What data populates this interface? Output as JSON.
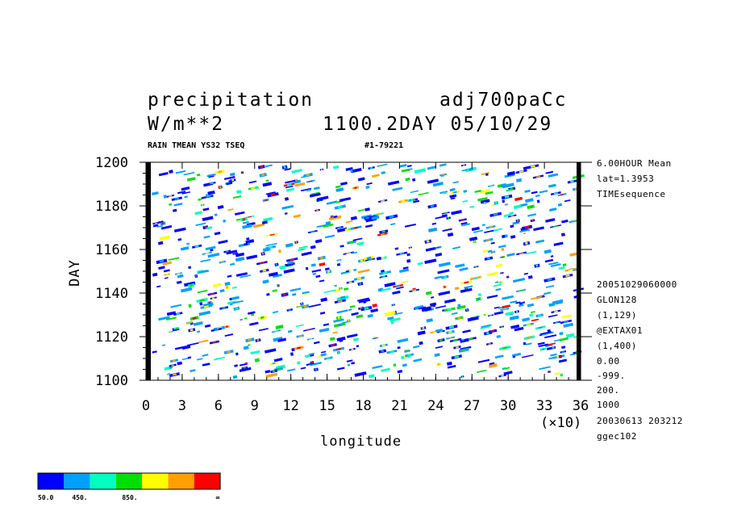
{
  "header": {
    "title_left": "precipitation",
    "title_right": "adj700paCc",
    "units": "W/m**2",
    "time_label": "1100.2DAY 05/10/29",
    "sub_left": "RAIN TMEAN YS32 TSEQ",
    "sub_mid": "#1-79221"
  },
  "side_info": [
    "6.00HOUR Mean",
    "lat=1.3953",
    "TIMEsequence",
    "20051029060000",
    "GLON128",
    "(1,129)",
    "@EXTAX01",
    "(1,400)",
    "0.00",
    "-999.",
    "200.",
    "1000",
    "20030613 203212",
    "ggec102"
  ],
  "x_multiplier": "(×10)",
  "colorbar": {
    "labels": [
      "50.0",
      "450.",
      "850.",
      "∞"
    ],
    "colors": [
      "#0000ff",
      "#00a0ff",
      "#00ffc0",
      "#00e000",
      "#ffff00",
      "#ffa000",
      "#ff0000"
    ]
  },
  "chart_data": {
    "type": "heatmap",
    "title": "precipitation",
    "xlabel": "longitude",
    "ylabel": "DAY",
    "x_ticks": [
      "0",
      "3",
      "6",
      "9",
      "12",
      "15",
      "18",
      "21",
      "24",
      "27",
      "30",
      "33",
      "36"
    ],
    "y_ticks": [
      "1100",
      "1120",
      "1140",
      "1160",
      "1180",
      "1200"
    ],
    "xlim": [
      0,
      36
    ],
    "ylim": [
      1100,
      1200
    ],
    "grid": false,
    "note": "Shaded Hovmoeller diagram of precipitation (longitude vs day); individual cells not legible"
  }
}
